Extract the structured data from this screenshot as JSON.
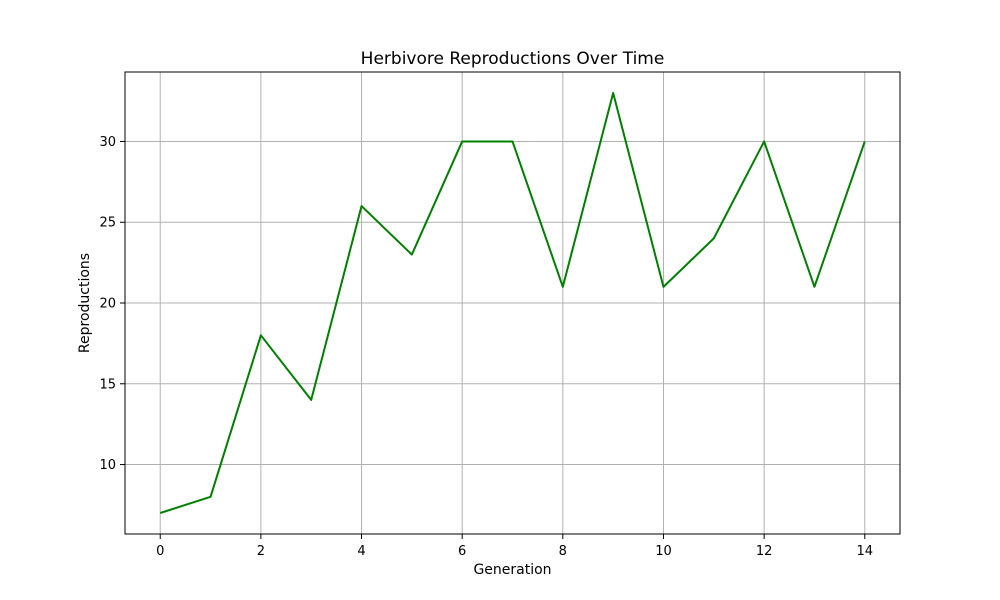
{
  "chart_data": {
    "type": "line",
    "title": "Herbivore Reproductions Over Time",
    "xlabel": "Generation",
    "ylabel": "Reproductions",
    "x": [
      0,
      1,
      2,
      3,
      4,
      5,
      6,
      7,
      8,
      9,
      10,
      11,
      12,
      13,
      14
    ],
    "series": [
      {
        "values": [
          7,
          8,
          18,
          14,
          26,
          23,
          30,
          30,
          21,
          33,
          21,
          24,
          30,
          21,
          30
        ],
        "color": "#008000"
      }
    ],
    "xlim": [
      -0.7,
      14.7
    ],
    "ylim": [
      5.7,
      34.3
    ],
    "xticks": [
      "0",
      "2",
      "4",
      "6",
      "8",
      "10",
      "12",
      "14"
    ],
    "yticks": [
      "10",
      "15",
      "20",
      "25",
      "30"
    ],
    "grid": true,
    "legend": "none",
    "grid_color": "#b0b0b0"
  }
}
